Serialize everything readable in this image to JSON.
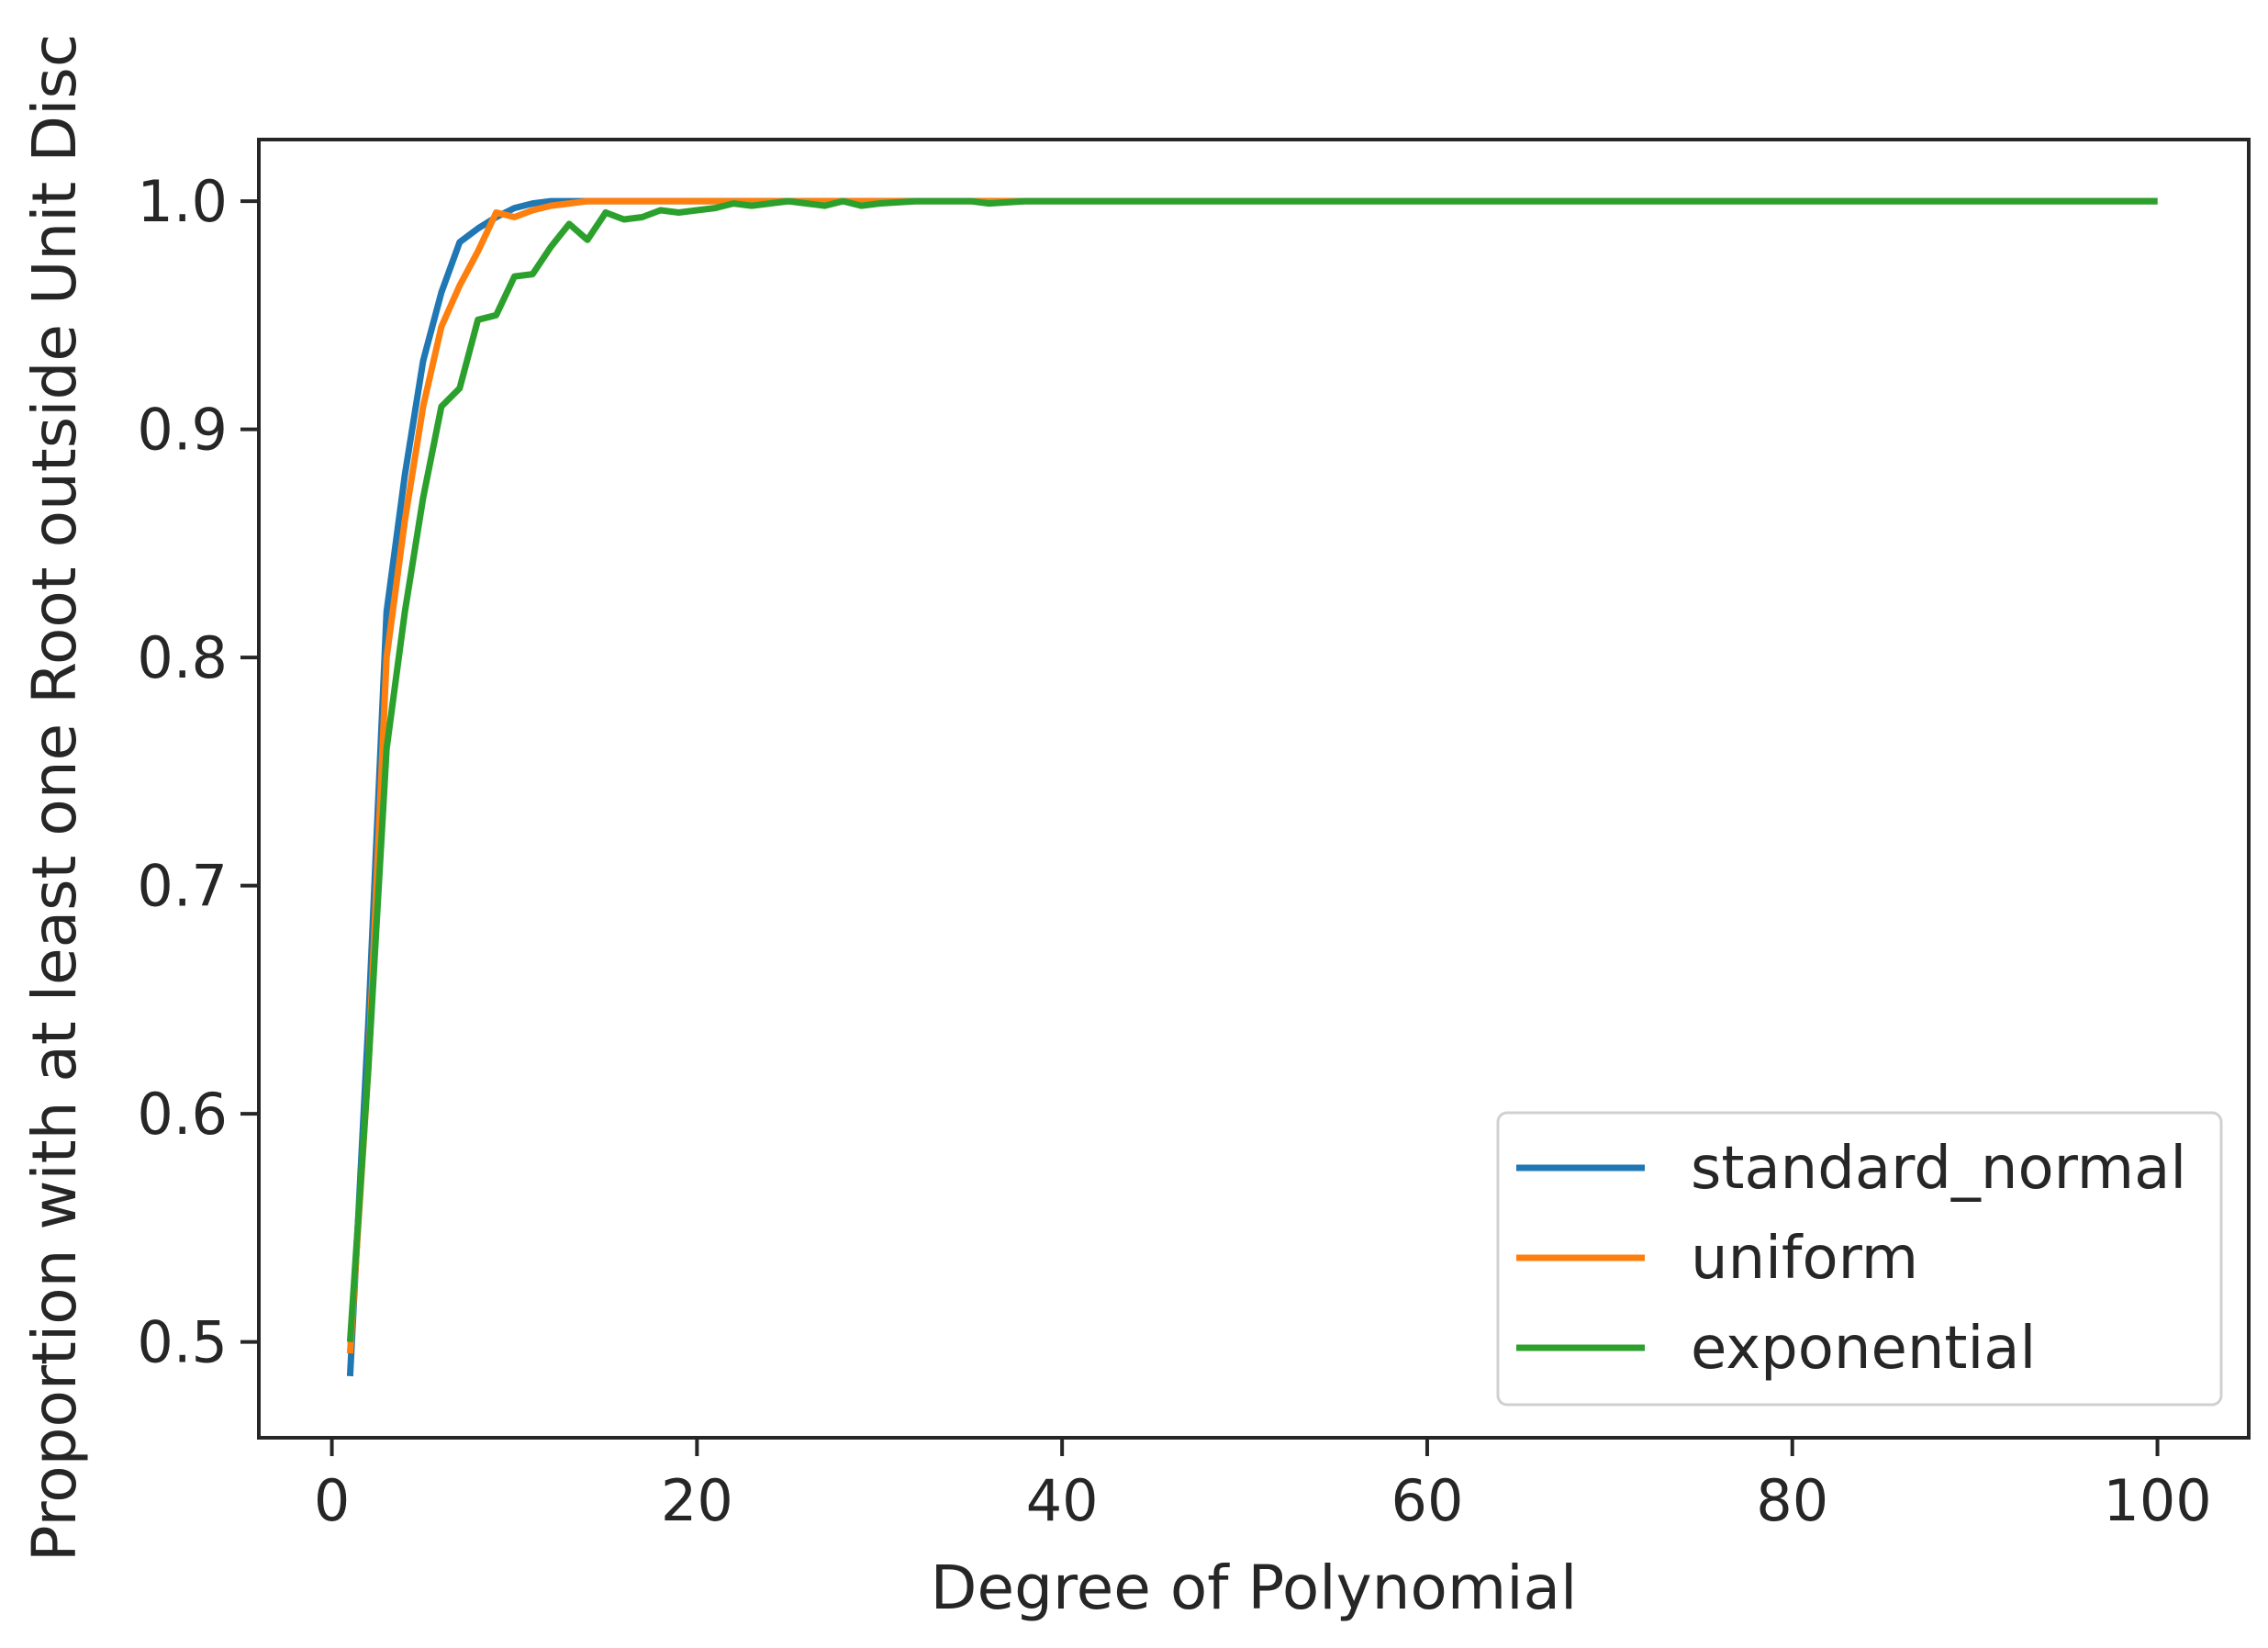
{
  "chart_data": {
    "type": "line",
    "title": "",
    "xlabel": "Degree of Polynomial",
    "ylabel": "Proportion  with at least one  Root outside Unit Disc",
    "xlim": [
      -4,
      105
    ],
    "ylim": [
      0.458,
      1.027
    ],
    "xticks": [
      0,
      20,
      40,
      60,
      80,
      100
    ],
    "xtick_labels": [
      "0",
      "20",
      "40",
      "60",
      "80",
      "100"
    ],
    "yticks": [
      0.5,
      0.6,
      0.7,
      0.8,
      0.9,
      1.0
    ],
    "ytick_labels": [
      "0.5",
      "0.6",
      "0.7",
      "0.8",
      "0.9",
      "1.0"
    ],
    "grid": false,
    "legend_position": "lower-right",
    "series": [
      {
        "name": "standard_normal",
        "color": "#1f77b4",
        "x": [
          1,
          2,
          3,
          4,
          5,
          6,
          7,
          8,
          9,
          10,
          11,
          12,
          13,
          15,
          20,
          30,
          40,
          60,
          80,
          100
        ],
        "y": [
          0.485,
          0.64,
          0.82,
          0.88,
          0.93,
          0.96,
          0.982,
          0.988,
          0.993,
          0.997,
          0.999,
          1.0,
          1.0,
          1.0,
          1.0,
          1.0,
          1.0,
          1.0,
          1.0,
          1.0
        ]
      },
      {
        "name": "uniform",
        "color": "#ff7f0e",
        "x": [
          1,
          2,
          3,
          4,
          5,
          6,
          7,
          8,
          9,
          10,
          11,
          12,
          13,
          14,
          15,
          20,
          30,
          40,
          60,
          80,
          100
        ],
        "y": [
          0.495,
          0.62,
          0.8,
          0.86,
          0.91,
          0.945,
          0.963,
          0.978,
          0.995,
          0.993,
          0.996,
          0.998,
          0.999,
          1.0,
          1.0,
          1.0,
          1.0,
          1.0,
          1.0,
          1.0,
          1.0
        ]
      },
      {
        "name": "exponential",
        "color": "#2ca02c",
        "x": [
          1,
          2,
          3,
          4,
          5,
          6,
          7,
          8,
          9,
          10,
          11,
          12,
          13,
          14,
          15,
          16,
          17,
          18,
          19,
          20,
          21,
          22,
          23,
          24,
          25,
          26,
          27,
          28,
          29,
          30,
          32,
          35,
          36,
          38,
          40,
          50,
          60,
          70,
          80,
          90,
          100
        ],
        "y": [
          0.5,
          0.62,
          0.76,
          0.82,
          0.87,
          0.91,
          0.918,
          0.948,
          0.95,
          0.967,
          0.968,
          0.98,
          0.99,
          0.983,
          0.995,
          0.992,
          0.993,
          0.996,
          0.995,
          0.996,
          0.997,
          0.999,
          0.998,
          0.999,
          1.0,
          0.999,
          0.998,
          1.0,
          0.998,
          0.999,
          1.0,
          1.0,
          0.999,
          1.0,
          1.0,
          1.0,
          1.0,
          1.0,
          1.0,
          1.0,
          1.0
        ]
      }
    ]
  }
}
